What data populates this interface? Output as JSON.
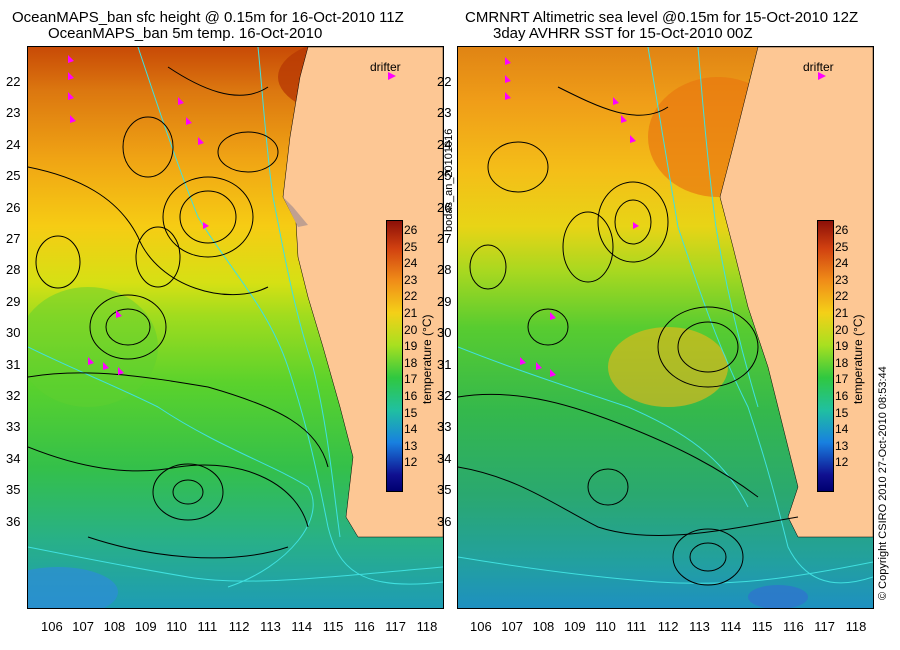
{
  "titles": {
    "left_line1": "OceanMAPS_ban sfc height @ 0.15m for 16-Oct-2010 11Z",
    "left_line2": "OceanMAPS_ban 5m temp. 16-Oct-2010",
    "right_line1": "CMRNRT Altimetric sea level  @0.15m  for 15-Oct-2010 12Z",
    "right_line2": "3day AVHRR SST for 15-Oct-2010 00Z"
  },
  "side_labels": {
    "center_id": "bodas_an_20101016",
    "copyright": "© Copyright CSIRO 2010    27-Oct-2010 08:53:44"
  },
  "legend": {
    "drifter_label": "drifter",
    "colorbar_label": "temperature (°C)",
    "colorbar_ticks": [
      "26",
      "25",
      "24",
      "23",
      "22",
      "21",
      "20",
      "19",
      "18",
      "17",
      "16",
      "15",
      "14",
      "13",
      "12"
    ]
  },
  "axes": {
    "lat_ticks": [
      "22",
      "23",
      "24",
      "25",
      "26",
      "27",
      "28",
      "29",
      "30",
      "31",
      "32",
      "33",
      "34",
      "35",
      "36"
    ],
    "lon_ticks": [
      "106",
      "107",
      "108",
      "109",
      "110",
      "111",
      "112",
      "113",
      "114",
      "115",
      "116",
      "117",
      "118"
    ]
  },
  "colors": {
    "land": "#fdc794",
    "contour": "#000000",
    "bathymetry": "#40e0e0",
    "drifter": "#ff00ff"
  }
}
